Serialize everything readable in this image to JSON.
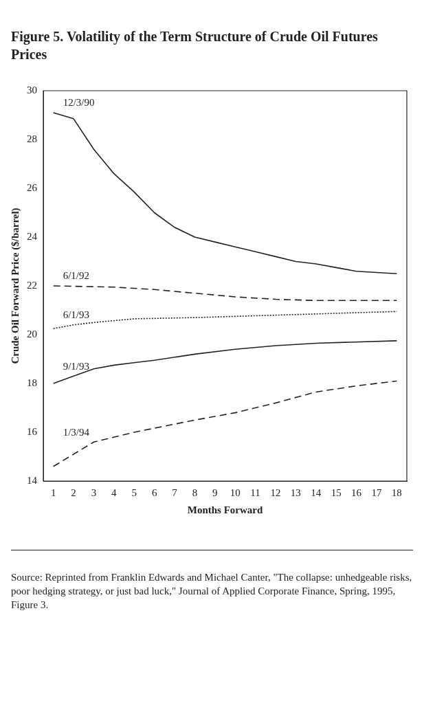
{
  "chart_data": {
    "type": "line",
    "title": "Figure 5. Volatility of the Term Structure of Crude Oil Futures Prices",
    "xlabel": "Months Forward",
    "ylabel": "Crude Oil Forward Price ($/barrel)",
    "xlim": [
      0.5,
      18.5
    ],
    "xticks": [
      1,
      2,
      3,
      4,
      5,
      6,
      7,
      8,
      9,
      10,
      11,
      12,
      13,
      14,
      15,
      16,
      17,
      18
    ],
    "ylim": [
      14,
      30
    ],
    "yticks": [
      14,
      16,
      18,
      20,
      22,
      24,
      26,
      28,
      30
    ],
    "marker": "none",
    "legend": false,
    "annotations": [
      "Source: Reprinted from Franklin Edwards and Michael Canter, \"The collapse: unhedgeable risks, poor hedging strategy, or just bad luck,\" Journal of Applied Corporate Finance, Spring, 1995, Figure 3."
    ],
    "series": [
      {
        "name": "12/3/90",
        "color": "#222222",
        "line_style": "solid",
        "x": [
          1,
          2,
          3,
          4,
          5,
          6,
          7,
          8,
          9,
          10,
          11,
          12,
          13,
          14,
          15,
          16,
          17,
          18
        ],
        "values": [
          29.1,
          28.85,
          27.6,
          26.6,
          25.85,
          25.0,
          24.4,
          24.0,
          23.8,
          23.6,
          23.4,
          23.2,
          23.0,
          22.9,
          22.75,
          22.6,
          22.55,
          22.5
        ]
      },
      {
        "name": "6/1/92",
        "color": "#222222",
        "line_style": "dashed",
        "x": [
          1,
          4,
          6,
          8,
          10,
          12,
          14,
          18
        ],
        "values": [
          22.0,
          21.95,
          21.85,
          21.7,
          21.55,
          21.45,
          21.4,
          21.4
        ]
      },
      {
        "name": "6/1/93",
        "color": "#222222",
        "line_style": "dotted",
        "x": [
          1,
          2,
          3,
          5,
          8,
          12,
          18
        ],
        "values": [
          20.25,
          20.4,
          20.5,
          20.65,
          20.7,
          20.8,
          20.95
        ]
      },
      {
        "name": "9/1/93",
        "color": "#222222",
        "line_style": "solid",
        "x": [
          1,
          2,
          3,
          4,
          5,
          6,
          8,
          10,
          12,
          14,
          18
        ],
        "values": [
          18.0,
          18.3,
          18.6,
          18.75,
          18.85,
          18.95,
          19.2,
          19.4,
          19.55,
          19.65,
          19.75
        ]
      },
      {
        "name": "1/3/94",
        "color": "#222222",
        "line_style": "dashed",
        "x": [
          1,
          3,
          5,
          8,
          10,
          12,
          14,
          16,
          18
        ],
        "values": [
          14.6,
          15.6,
          16.0,
          16.5,
          16.8,
          17.2,
          17.65,
          17.9,
          18.1
        ]
      }
    ]
  }
}
